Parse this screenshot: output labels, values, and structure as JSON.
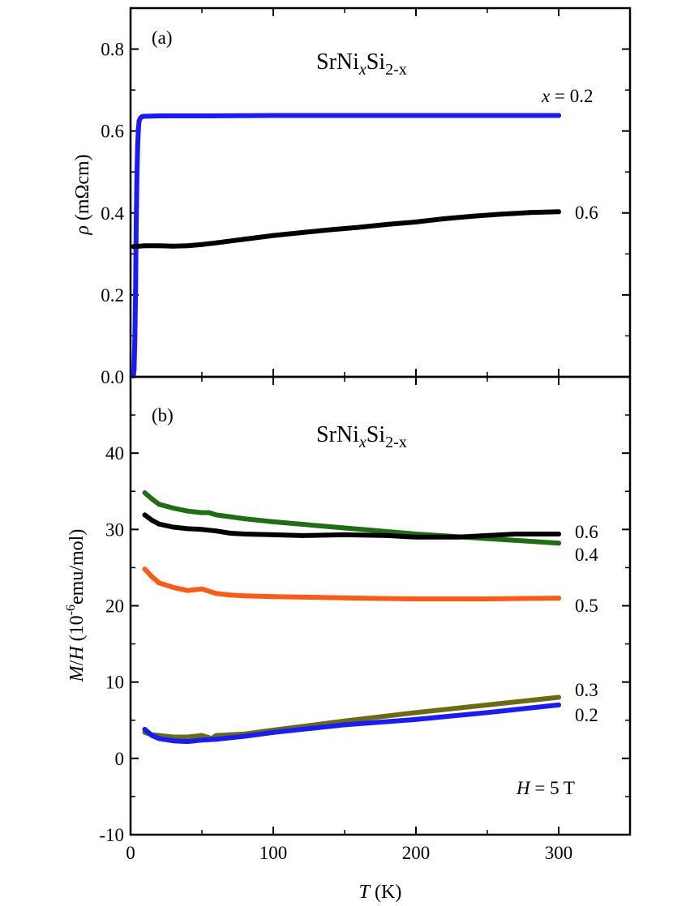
{
  "chart_data": [
    {
      "panel": "(a)",
      "type": "line",
      "title": {
        "pre": "SrNi",
        "sub1": "x",
        "mid": "Si",
        "sub2": "2-x"
      },
      "xlabel": "T (K)",
      "ylabel": {
        "symbol": "ρ",
        "units": " (mΩcm)"
      },
      "xlim": [
        0,
        350
      ],
      "ylim": [
        0,
        0.9
      ],
      "xticks": [
        0,
        100,
        200,
        300
      ],
      "yticks": [
        0.0,
        0.2,
        0.4,
        0.6,
        0.8
      ],
      "ytick_labels": [
        "0.0",
        "0.2",
        "0.4",
        "0.6",
        "0.8"
      ],
      "colors": {
        "x0.2": "#1a1aff",
        "x0.6": "#000000"
      },
      "series": [
        {
          "name": "x = 0.2",
          "label_var": "x",
          "label_rest": " = 0.2",
          "color": "#1a1aff",
          "x": [
            2,
            2.5,
            3,
            3.5,
            4,
            4.5,
            5,
            5.5,
            6,
            7,
            8,
            10,
            20,
            50,
            100,
            150,
            200,
            250,
            300
          ],
          "y": [
            0.002,
            0.02,
            0.09,
            0.21,
            0.375,
            0.495,
            0.565,
            0.605,
            0.625,
            0.632,
            0.635,
            0.636,
            0.637,
            0.637,
            0.638,
            0.638,
            0.638,
            0.638,
            0.638
          ]
        },
        {
          "name": "0.6",
          "label": "0.6",
          "color": "#000000",
          "x": [
            2,
            10,
            20,
            30,
            40,
            50,
            60,
            80,
            100,
            120,
            140,
            160,
            180,
            200,
            220,
            240,
            260,
            280,
            300
          ],
          "y": [
            0.318,
            0.32,
            0.32,
            0.319,
            0.32,
            0.323,
            0.327,
            0.336,
            0.345,
            0.352,
            0.359,
            0.365,
            0.372,
            0.378,
            0.386,
            0.392,
            0.397,
            0.401,
            0.403
          ]
        }
      ]
    },
    {
      "panel": "(b)",
      "type": "line",
      "title": {
        "pre": "SrNi",
        "sub1": "x",
        "mid": "Si",
        "sub2": "2-x"
      },
      "xlabel": {
        "var": "T",
        "units": " (K)"
      },
      "ylabel": {
        "var1": "M",
        "slash": "/",
        "var2": "H",
        "pre": " (10",
        "exp": "-6",
        "post": "emu/mol)"
      },
      "xlim": [
        0,
        350
      ],
      "ylim": [
        -10,
        50
      ],
      "xticks": [
        0,
        100,
        200,
        300
      ],
      "xtick_labels": [
        "0",
        "100",
        "200",
        "300"
      ],
      "yticks": [
        -10,
        0,
        10,
        20,
        30,
        40
      ],
      "ytick_labels": [
        "-10",
        "0",
        "10",
        "20",
        "30",
        "40"
      ],
      "annotation": {
        "var": "H",
        "rest": " = 5 T"
      },
      "series": [
        {
          "name": "0.4",
          "label": "0.4",
          "color": "#1e6e12",
          "x": [
            10,
            15,
            20,
            30,
            40,
            50,
            55,
            60,
            80,
            100,
            150,
            200,
            250,
            300
          ],
          "y": [
            34.8,
            34.0,
            33.3,
            32.8,
            32.4,
            32.2,
            32.2,
            31.9,
            31.4,
            31.0,
            30.2,
            29.4,
            28.8,
            28.2
          ]
        },
        {
          "name": "0.6",
          "label": "0.6",
          "color": "#000000",
          "x": [
            10,
            15,
            20,
            30,
            40,
            50,
            60,
            70,
            80,
            100,
            120,
            150,
            180,
            200,
            230,
            250,
            270,
            300
          ],
          "y": [
            31.9,
            31.2,
            30.7,
            30.3,
            30.1,
            30.0,
            29.8,
            29.5,
            29.4,
            29.3,
            29.2,
            29.3,
            29.2,
            29.0,
            29.0,
            29.2,
            29.4,
            29.4
          ]
        },
        {
          "name": "0.5",
          "label": "0.5",
          "color": "#ff5a14",
          "x": [
            10,
            15,
            20,
            30,
            40,
            50,
            60,
            70,
            80,
            100,
            130,
            160,
            200,
            250,
            300
          ],
          "y": [
            24.8,
            23.8,
            23.0,
            22.4,
            22.0,
            22.2,
            21.6,
            21.4,
            21.3,
            21.2,
            21.1,
            21.0,
            20.9,
            20.9,
            21.0
          ]
        },
        {
          "name": "0.3",
          "label": "0.3",
          "color": "#6b6b10",
          "x": [
            10,
            15,
            20,
            30,
            40,
            50,
            57,
            60,
            80,
            100,
            150,
            200,
            250,
            300
          ],
          "y": [
            3.4,
            3.1,
            3.0,
            2.8,
            2.8,
            3.0,
            2.6,
            3.0,
            3.2,
            3.7,
            4.9,
            6.0,
            7.0,
            8.0
          ]
        },
        {
          "name": "0.2",
          "label": "0.2",
          "color": "#1a1aff",
          "x": [
            10,
            15,
            20,
            30,
            40,
            50,
            60,
            80,
            100,
            150,
            200,
            250,
            300
          ],
          "y": [
            3.8,
            3.0,
            2.6,
            2.3,
            2.2,
            2.4,
            2.5,
            2.9,
            3.4,
            4.4,
            5.1,
            6.0,
            7.0
          ]
        }
      ]
    }
  ]
}
